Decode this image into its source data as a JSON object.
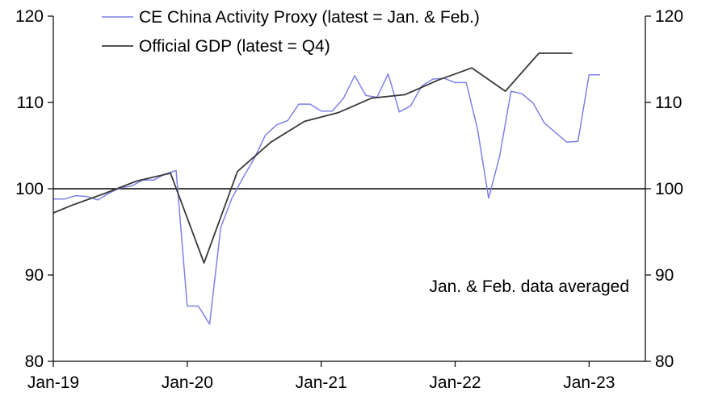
{
  "chart_data": {
    "type": "line",
    "title": "",
    "xlabel": "",
    "ylabel": "",
    "ylim": [
      80,
      120
    ],
    "yticks": [
      80,
      90,
      100,
      110,
      120
    ],
    "xlim": [
      2019.0,
      2023.42
    ],
    "xticks": [
      {
        "label": "Jan-19",
        "x": 2019.0
      },
      {
        "label": "Jan-20",
        "x": 2020.0
      },
      {
        "label": "Jan-21",
        "x": 2021.0
      },
      {
        "label": "Jan-22",
        "x": 2022.0
      },
      {
        "label": "Jan-23",
        "x": 2023.0
      }
    ],
    "reference_line": 100,
    "colors": {
      "activity": "#8080e6",
      "gdp": "#3a3a3a",
      "axis": "#000000"
    },
    "annotation": "Jan. & Feb. data averaged",
    "legend_position": "top-left",
    "series": [
      {
        "name": "CE China Activity Proxy (latest = Jan. & Feb.)",
        "key": "activity",
        "x": [
          2019.0,
          2019.083,
          2019.167,
          2019.25,
          2019.333,
          2019.417,
          2019.5,
          2019.583,
          2019.667,
          2019.75,
          2019.833,
          2019.917,
          2020.0,
          2020.083,
          2020.167,
          2020.25,
          2020.333,
          2020.417,
          2020.5,
          2020.583,
          2020.667,
          2020.75,
          2020.833,
          2020.917,
          2021.0,
          2021.083,
          2021.167,
          2021.25,
          2021.333,
          2021.417,
          2021.5,
          2021.583,
          2021.667,
          2021.75,
          2021.833,
          2021.917,
          2022.0,
          2022.083,
          2022.167,
          2022.25,
          2022.333,
          2022.417,
          2022.5,
          2022.583,
          2022.667,
          2022.75,
          2022.833,
          2022.917,
          2023.0,
          2023.083
        ],
        "values": [
          98.8,
          98.8,
          99.2,
          99.1,
          98.7,
          99.5,
          100.1,
          100.3,
          101.0,
          101.0,
          101.7,
          102.1,
          86.4,
          86.4,
          84.3,
          95.5,
          98.9,
          101.3,
          103.5,
          106.2,
          107.4,
          107.9,
          109.8,
          109.8,
          109.0,
          109.0,
          110.5,
          113.1,
          110.8,
          110.6,
          113.3,
          108.9,
          109.6,
          111.9,
          112.7,
          112.8,
          112.3,
          112.3,
          106.9,
          98.9,
          103.8,
          111.3,
          111.0,
          109.9,
          107.6,
          106.5,
          105.4,
          105.5,
          113.2,
          113.2
        ]
      },
      {
        "name": "Official GDP (latest = Q4)",
        "key": "gdp",
        "x": [
          2019.0,
          2019.125,
          2019.375,
          2019.625,
          2019.875,
          2020.125,
          2020.375,
          2020.625,
          2020.875,
          2021.125,
          2021.375,
          2021.625,
          2021.875,
          2022.125,
          2022.375,
          2022.625,
          2022.875
        ],
        "values": [
          97.2,
          98.0,
          99.4,
          100.9,
          101.8,
          91.4,
          102.0,
          105.4,
          107.8,
          108.8,
          110.5,
          110.9,
          112.6,
          114.0,
          111.3,
          115.7,
          115.7
        ]
      }
    ]
  }
}
